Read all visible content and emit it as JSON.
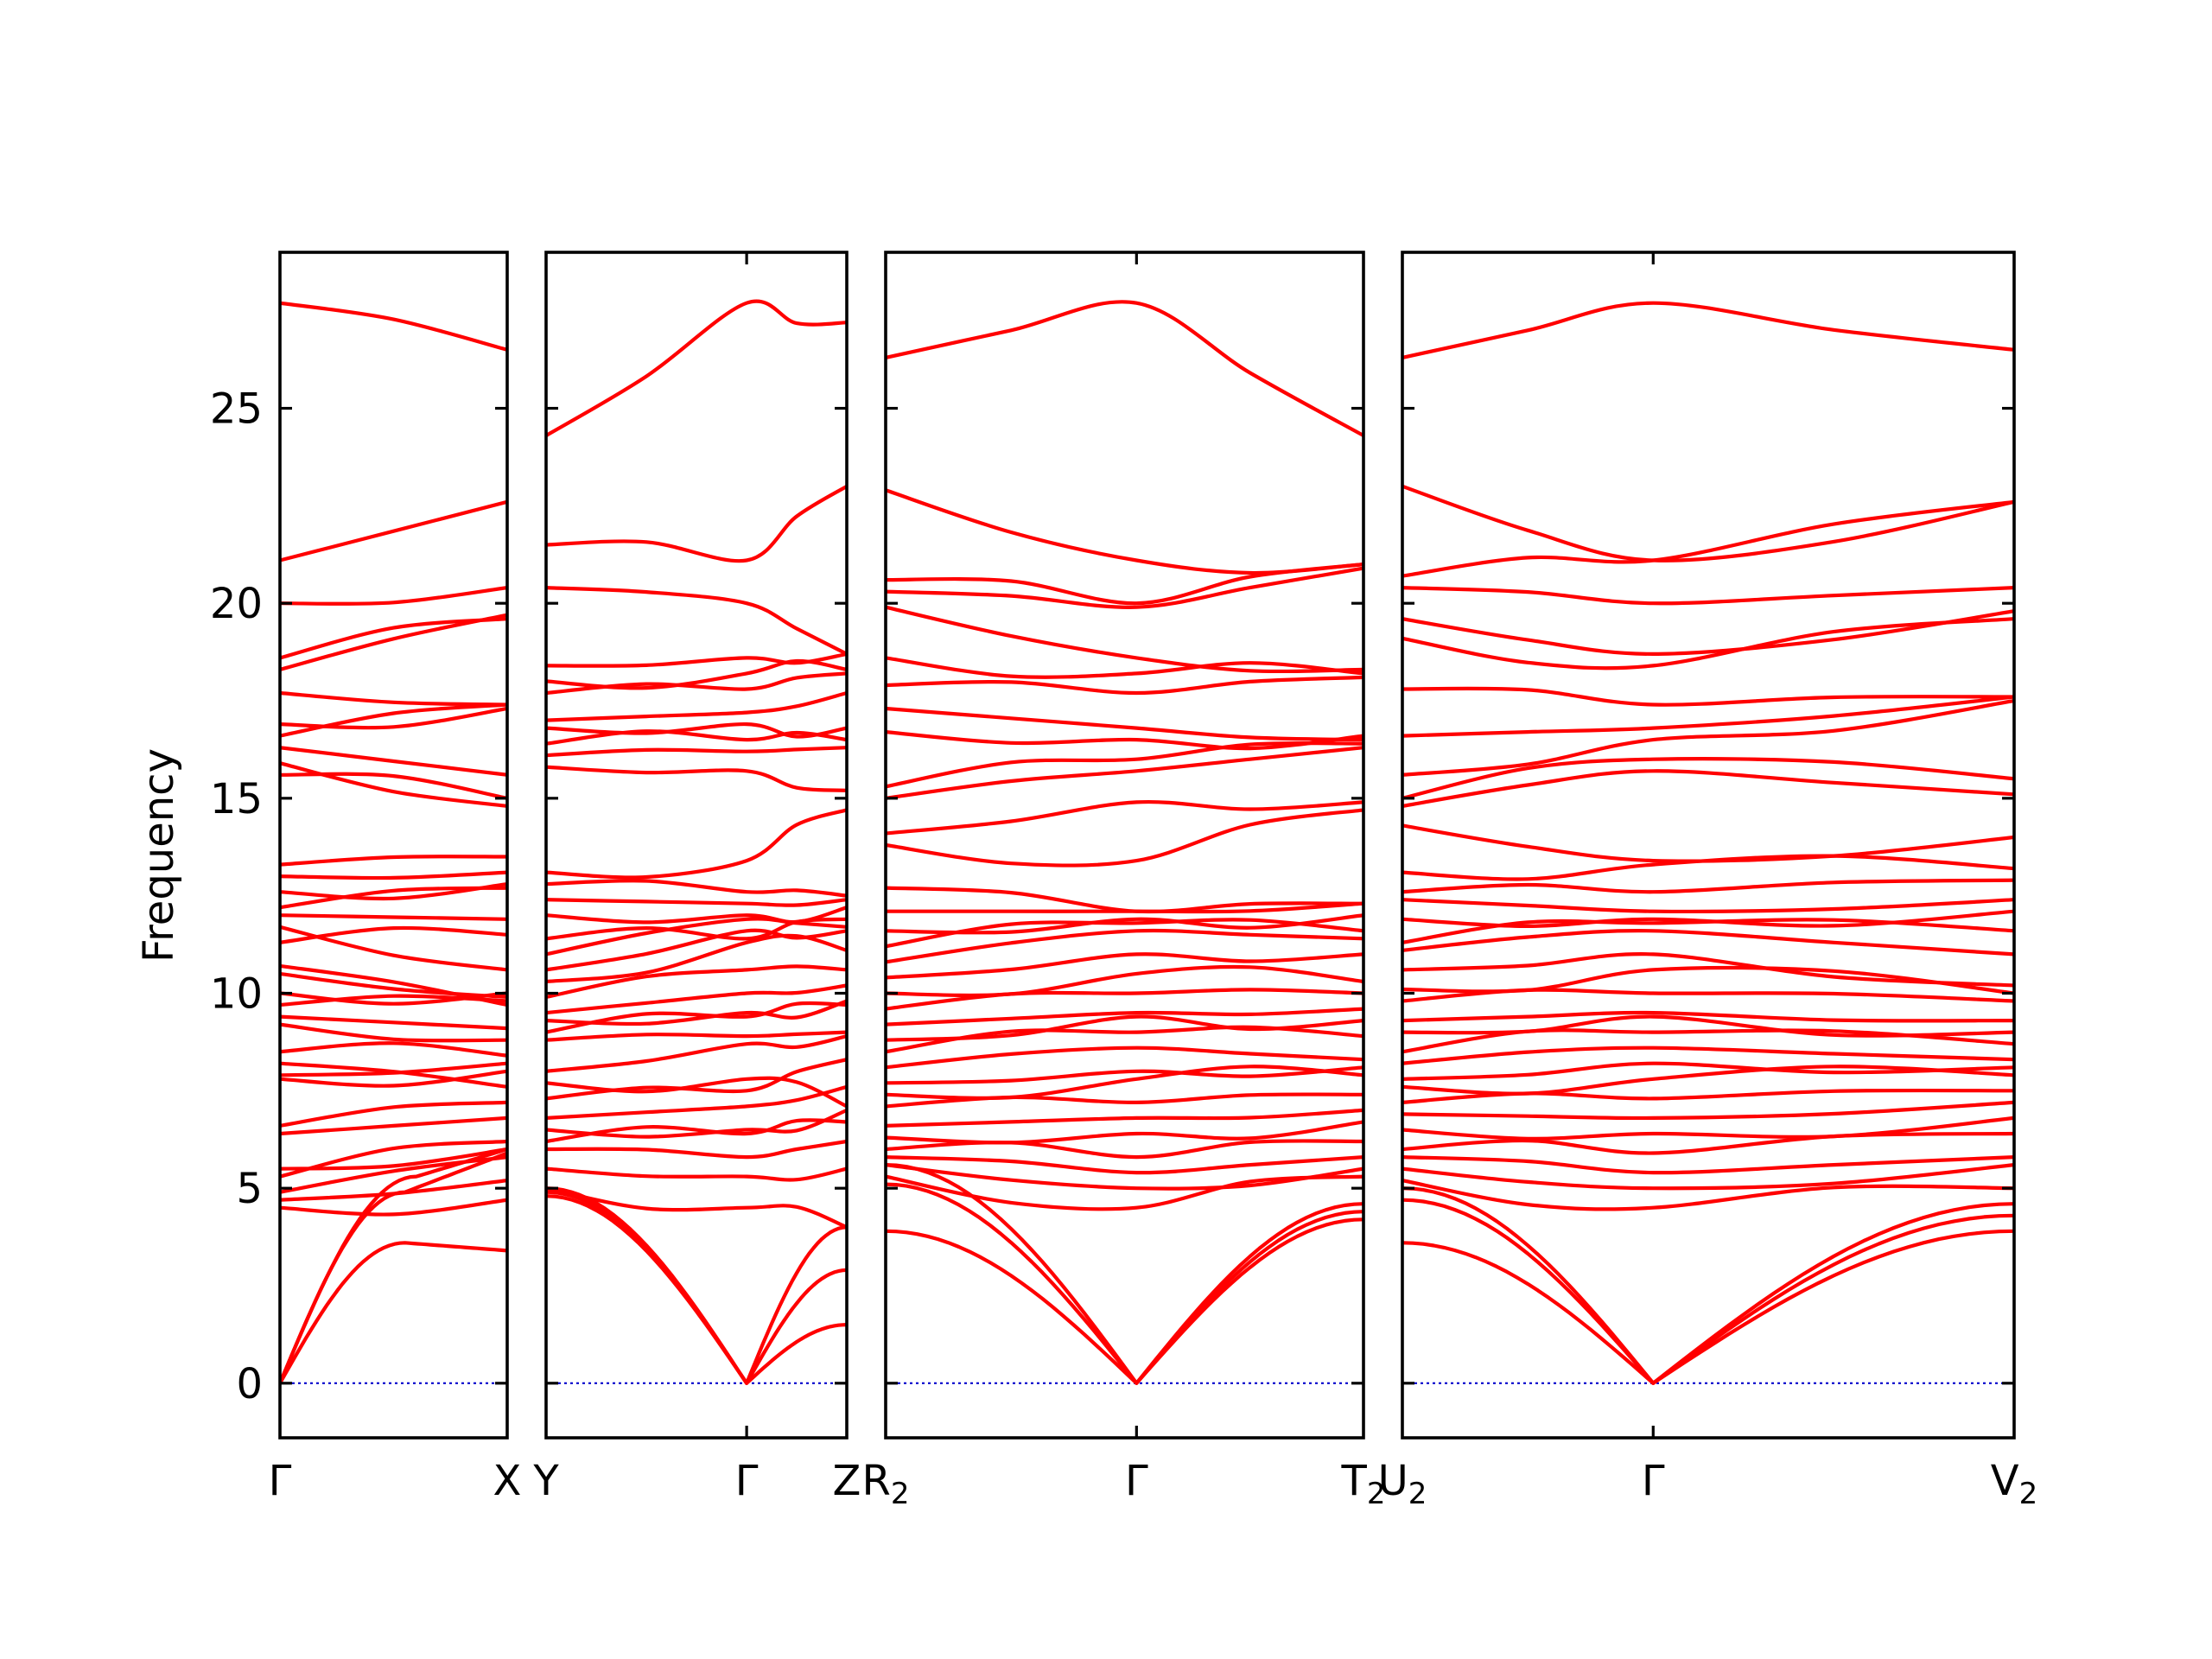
{
  "chart_data": {
    "type": "line",
    "ylabel": "Frequency",
    "ylim": [
      -1.4,
      29
    ],
    "yticks": [
      0,
      5,
      10,
      15,
      20,
      25
    ],
    "colors": {
      "bands": "#ff0000",
      "zero_line": "#0000cc",
      "frame": "#000000"
    },
    "panels": [
      {
        "segment": "Γ–X",
        "point_labels": [
          {
            "t": 0,
            "text": "Γ",
            "sub": ""
          },
          {
            "t": 1,
            "text": "X",
            "sub": ""
          }
        ],
        "acoustic": [
          [
            0,
            0,
            0.55,
            3.6,
            1,
            3.4
          ],
          [
            0,
            0,
            0.6,
            5.3,
            1,
            6.0
          ],
          [
            0,
            0,
            0.55,
            4.9,
            1,
            5.9
          ]
        ],
        "optical": [
          [
            4.5,
            4.7
          ],
          [
            4.7,
            5.2
          ],
          [
            4.9,
            5.8
          ],
          [
            5.3,
            6.2
          ],
          [
            5.5,
            6.0
          ],
          [
            6.4,
            6.8
          ],
          [
            6.6,
            7.2
          ],
          [
            7.8,
            8.0
          ],
          [
            7.9,
            8.2
          ],
          [
            8.2,
            7.6
          ],
          [
            8.5,
            8.4
          ],
          [
            9.2,
            8.8
          ],
          [
            9.4,
            9.1
          ],
          [
            9.7,
            9.8
          ],
          [
            10.0,
            10.0
          ],
          [
            10.5,
            9.9
          ],
          [
            10.7,
            9.7
          ],
          [
            11.3,
            11.5
          ],
          [
            11.7,
            10.6
          ],
          [
            12.0,
            11.9
          ],
          [
            12.2,
            12.7
          ],
          [
            12.6,
            12.8
          ],
          [
            13.0,
            13.1
          ],
          [
            13.3,
            13.5
          ],
          [
            15.6,
            15.0
          ],
          [
            15.9,
            14.8
          ],
          [
            16.3,
            15.6
          ],
          [
            16.6,
            17.4
          ],
          [
            16.9,
            17.3
          ],
          [
            17.7,
            17.4
          ],
          [
            18.3,
            19.7
          ],
          [
            18.6,
            19.6
          ],
          [
            20.0,
            20.4
          ],
          [
            21.1,
            22.6
          ],
          [
            27.7,
            26.5
          ]
        ]
      },
      {
        "segment": "Y–Γ–Z",
        "point_labels": [
          {
            "t": 0,
            "text": "Y",
            "sub": ""
          },
          {
            "t": 0.667,
            "text": "Γ",
            "sub": ""
          },
          {
            "t": 1,
            "text": "Z",
            "sub": ""
          }
        ],
        "acoustic": [
          [
            0,
            4.9,
            0.667,
            0,
            1,
            4.0
          ],
          [
            0,
            4.8,
            0.667,
            0,
            1,
            2.9
          ],
          [
            0,
            5.0,
            0.667,
            0,
            1,
            1.5
          ]
        ],
        "optical": [
          [
            5.0,
            4.5,
            4.0
          ],
          [
            5.5,
            5.3,
            5.5
          ],
          [
            6.0,
            5.8,
            6.2
          ],
          [
            6.2,
            6.4,
            6.7
          ],
          [
            6.5,
            6.5,
            7.0
          ],
          [
            6.8,
            7.1,
            7.6
          ],
          [
            7.3,
            7.5,
            8.3
          ],
          [
            7.7,
            7.8,
            7.1
          ],
          [
            8.0,
            8.7,
            8.9
          ],
          [
            8.8,
            8.9,
            9.0
          ],
          [
            9.0,
            9.4,
            9.7
          ],
          [
            9.3,
            9.5,
            9.8
          ],
          [
            9.5,
            10.0,
            10.2
          ],
          [
            9.9,
            10.6,
            10.6
          ],
          [
            10.3,
            11.3,
            11.1
          ],
          [
            10.6,
            11.6,
            11.6
          ],
          [
            11.0,
            11.9,
            11.7
          ],
          [
            11.4,
            11.4,
            11.9
          ],
          [
            12.0,
            12.0,
            12.2
          ],
          [
            12.4,
            12.3,
            12.4
          ],
          [
            12.8,
            12.6,
            12.5
          ],
          [
            13.1,
            13.4,
            14.7
          ],
          [
            15.8,
            15.7,
            15.2
          ],
          [
            16.1,
            16.2,
            16.3
          ],
          [
            16.4,
            16.5,
            16.5
          ],
          [
            16.8,
            16.9,
            16.8
          ],
          [
            17.0,
            17.2,
            17.7
          ],
          [
            17.7,
            17.8,
            18.2
          ],
          [
            18.0,
            18.2,
            18.3
          ],
          [
            18.4,
            18.6,
            18.7
          ],
          [
            20.4,
            20.0,
            18.7
          ],
          [
            21.5,
            21.1,
            23.0
          ],
          [
            24.3,
            27.7,
            27.2
          ]
        ]
      },
      {
        "segment": "R₂–Γ–T₂",
        "point_labels": [
          {
            "t": 0,
            "text": "R",
            "sub": "2"
          },
          {
            "t": 0.525,
            "text": "Γ",
            "sub": ""
          },
          {
            "t": 1,
            "text": "T",
            "sub": "2"
          }
        ],
        "acoustic": [
          [
            0,
            3.9,
            0.525,
            0,
            1,
            4.6
          ],
          [
            0,
            5.1,
            0.525,
            0,
            1,
            4.4
          ],
          [
            0,
            5.6,
            0.525,
            0,
            1,
            4.2
          ]
        ],
        "optical": [
          [
            5.3,
            4.5,
            5.3
          ],
          [
            5.6,
            5.0,
            5.5
          ],
          [
            5.8,
            5.4,
            5.8
          ],
          [
            6.0,
            5.8,
            6.2
          ],
          [
            6.3,
            6.4,
            6.7
          ],
          [
            6.6,
            6.8,
            7.0
          ],
          [
            7.1,
            7.2,
            7.4
          ],
          [
            7.4,
            7.8,
            7.9
          ],
          [
            7.7,
            8.0,
            8.1
          ],
          [
            8.1,
            8.6,
            8.3
          ],
          [
            8.5,
            9.0,
            8.9
          ],
          [
            8.8,
            9.4,
            9.3
          ],
          [
            9.2,
            9.5,
            9.6
          ],
          [
            9.6,
            10.0,
            10.0
          ],
          [
            10.0,
            10.5,
            10.3
          ],
          [
            10.4,
            11.0,
            11.0
          ],
          [
            10.8,
            11.6,
            11.4
          ],
          [
            11.2,
            11.8,
            11.6
          ],
          [
            11.6,
            11.9,
            12.0
          ],
          [
            12.1,
            12.1,
            12.3
          ],
          [
            12.7,
            12.1,
            12.3
          ],
          [
            13.8,
            13.4,
            14.7
          ],
          [
            14.1,
            14.9,
            14.9
          ],
          [
            15.0,
            15.7,
            16.3
          ],
          [
            15.3,
            16.0,
            16.4
          ],
          [
            16.7,
            16.5,
            16.6
          ],
          [
            17.3,
            16.8,
            16.5
          ],
          [
            17.9,
            17.7,
            18.1
          ],
          [
            18.6,
            18.2,
            18.2
          ],
          [
            19.9,
            18.6,
            18.3
          ],
          [
            20.3,
            19.9,
            20.9
          ],
          [
            20.6,
            20.0,
            21.0
          ],
          [
            22.9,
            21.1,
            21.0
          ],
          [
            26.3,
            27.7,
            24.3
          ]
        ]
      },
      {
        "segment": "U₂–Γ–V₂",
        "point_labels": [
          {
            "t": 0,
            "text": "U",
            "sub": "2"
          },
          {
            "t": 0.41,
            "text": "Γ",
            "sub": ""
          },
          {
            "t": 1,
            "text": "V",
            "sub": "2"
          }
        ],
        "acoustic": [
          [
            0,
            3.6,
            0.41,
            0,
            1,
            3.9
          ],
          [
            0,
            4.7,
            0.41,
            0,
            1,
            4.3
          ],
          [
            0,
            5.0,
            0.41,
            0,
            1,
            4.6
          ]
        ],
        "optical": [
          [
            5.2,
            4.5,
            5.0
          ],
          [
            5.5,
            5.0,
            5.6
          ],
          [
            5.8,
            5.4,
            5.8
          ],
          [
            6.0,
            5.9,
            6.4
          ],
          [
            6.5,
            6.4,
            6.8
          ],
          [
            6.9,
            6.8,
            7.2
          ],
          [
            7.2,
            7.3,
            7.5
          ],
          [
            7.6,
            7.8,
            7.9
          ],
          [
            7.8,
            8.2,
            8.1
          ],
          [
            8.2,
            8.6,
            8.3
          ],
          [
            8.5,
            9.0,
            8.7
          ],
          [
            9.0,
            9.4,
            9.0
          ],
          [
            9.3,
            9.5,
            9.3
          ],
          [
            9.8,
            10.0,
            9.8
          ],
          [
            10.1,
            10.6,
            10.0
          ],
          [
            10.6,
            11.0,
            10.2
          ],
          [
            11.1,
            11.6,
            11.0
          ],
          [
            11.3,
            11.8,
            11.6
          ],
          [
            11.9,
            11.9,
            12.1
          ],
          [
            12.4,
            12.1,
            12.4
          ],
          [
            12.6,
            12.6,
            12.9
          ],
          [
            13.1,
            13.3,
            13.2
          ],
          [
            14.3,
            13.4,
            14.0
          ],
          [
            14.8,
            15.7,
            15.1
          ],
          [
            15.0,
            16.0,
            15.5
          ],
          [
            15.6,
            16.5,
            17.5
          ],
          [
            16.6,
            16.8,
            17.6
          ],
          [
            17.8,
            17.4,
            17.6
          ],
          [
            19.1,
            18.4,
            19.6
          ],
          [
            19.6,
            18.7,
            19.8
          ],
          [
            20.4,
            20.0,
            20.4
          ],
          [
            20.7,
            21.1,
            22.6
          ],
          [
            23.0,
            21.1,
            22.6
          ],
          [
            26.3,
            27.7,
            26.5
          ]
        ]
      }
    ]
  }
}
